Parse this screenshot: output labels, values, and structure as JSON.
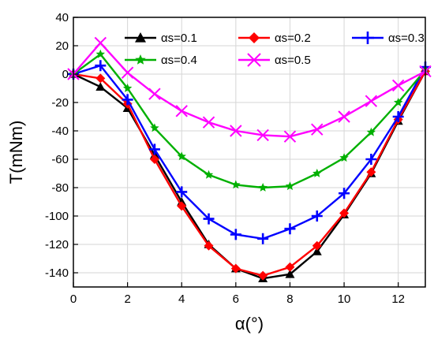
{
  "chart_data": {
    "type": "line",
    "xlabel": "α(°)",
    "ylabel": "T(mNm)",
    "xlim": [
      0,
      13
    ],
    "ylim": [
      -150,
      40
    ],
    "xticks": [
      0,
      2,
      4,
      6,
      8,
      10,
      12
    ],
    "yticks": [
      -140,
      -120,
      -100,
      -80,
      -60,
      -40,
      -20,
      0,
      20,
      40
    ],
    "grid": true,
    "legend_position": "top",
    "x": [
      0,
      1,
      2,
      3,
      4,
      5,
      6,
      7,
      8,
      9,
      10,
      11,
      12,
      13
    ],
    "series": [
      {
        "name": "αs=0.1",
        "color": "#000000",
        "marker": "triangle",
        "values": [
          0,
          -9,
          -24,
          -57,
          -90,
          -120,
          -137,
          -144,
          -141,
          -125,
          -99,
          -70,
          -33,
          2
        ]
      },
      {
        "name": "αs=0.2",
        "color": "#ff0000",
        "marker": "diamond",
        "values": [
          0,
          -3,
          -21,
          -60,
          -93,
          -121,
          -137,
          -142,
          -136,
          -121,
          -98,
          -69,
          -32,
          2
        ]
      },
      {
        "name": "αs=0.3",
        "color": "#0000ff",
        "marker": "plus",
        "values": [
          0,
          6,
          -18,
          -53,
          -83,
          -102,
          -113,
          -116,
          -109,
          -100,
          -84,
          -60,
          -30,
          5
        ]
      },
      {
        "name": "αs=0.4",
        "color": "#00b000",
        "marker": "star",
        "values": [
          0,
          14,
          -10,
          -38,
          -58,
          -71,
          -78,
          -80,
          -79,
          -70,
          -59,
          -41,
          -20,
          3
        ]
      },
      {
        "name": "αs=0.5",
        "color": "#ff00ff",
        "marker": "x",
        "values": [
          0,
          22,
          1,
          -14,
          -26,
          -34,
          -40,
          -43,
          -44,
          -39,
          -30,
          -19,
          -8,
          2
        ]
      }
    ]
  }
}
